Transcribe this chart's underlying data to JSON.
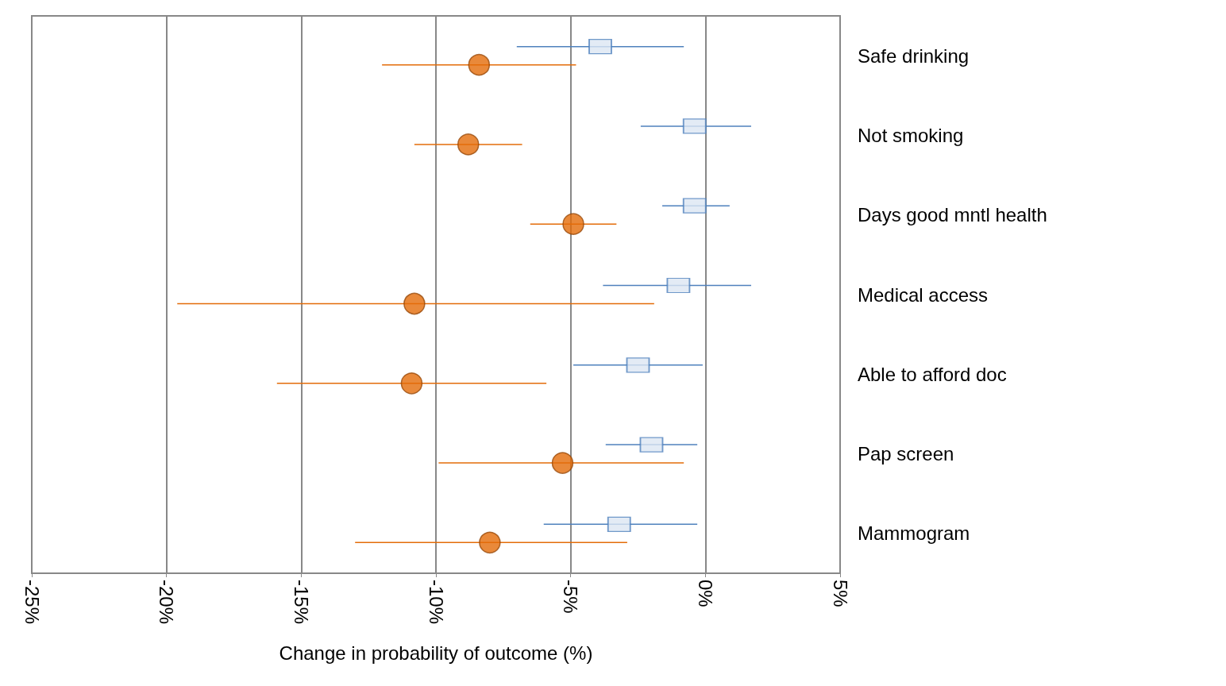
{
  "chart_data": {
    "type": "scatter",
    "orientation": "horizontal",
    "xlabel": "Change in probability of outcome (%)",
    "categories": [
      "Safe drinking",
      "Not smoking",
      "Days good mntl health",
      "Medical access",
      "Able to afford doc",
      "Pap screen",
      "Mammogram"
    ],
    "series": [
      {
        "color": "#4f81bd",
        "marker": "square",
        "values": [
          -3.9,
          -0.4,
          -0.4,
          -1.0,
          -2.5,
          -2.0,
          -3.2
        ],
        "errors": [
          [
            -7.0,
            -0.8
          ],
          [
            -2.4,
            1.7
          ],
          [
            -1.6,
            0.9
          ],
          [
            -3.8,
            1.7
          ],
          [
            -4.9,
            -0.1
          ],
          [
            -3.7,
            -0.3
          ],
          [
            -6.0,
            -0.3
          ]
        ]
      },
      {
        "color": "#e36c09",
        "marker": "circle",
        "values": [
          -8.4,
          -8.8,
          -4.9,
          -10.8,
          -10.9,
          -5.3,
          -8.0
        ],
        "errors": [
          [
            -12.0,
            -4.8
          ],
          [
            -10.8,
            -6.8
          ],
          [
            -6.5,
            -3.3
          ],
          [
            -19.6,
            -1.9
          ],
          [
            -15.9,
            -5.9
          ],
          [
            -9.9,
            -0.8
          ],
          [
            -13.0,
            -2.9
          ]
        ]
      }
    ],
    "xlim": [
      -25,
      5
    ],
    "xticks": [
      {
        "value": -25,
        "label": "-25%"
      },
      {
        "value": -20,
        "label": "-20%"
      },
      {
        "value": -15,
        "label": "-15%"
      },
      {
        "value": -10,
        "label": "-10%"
      },
      {
        "value": -5,
        "label": "-5%"
      },
      {
        "value": 0,
        "label": "0%"
      },
      {
        "value": 5,
        "label": "5%"
      }
    ],
    "grid": "x"
  }
}
